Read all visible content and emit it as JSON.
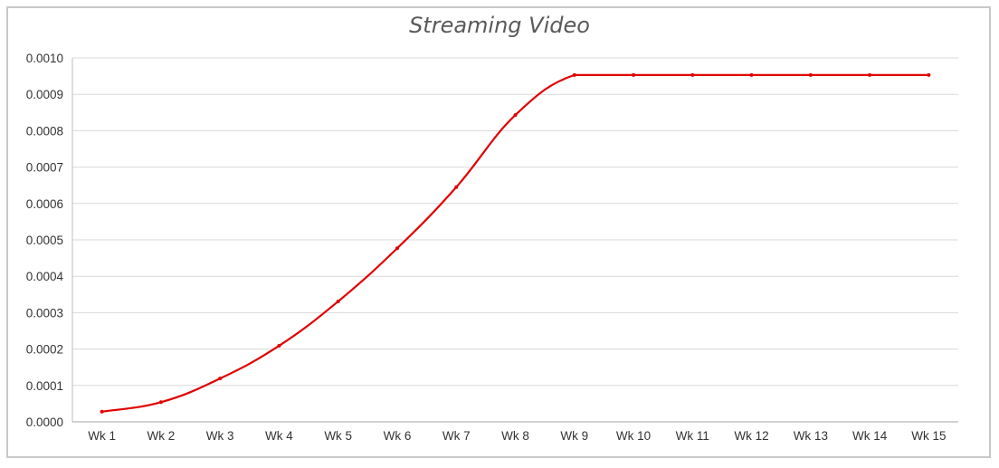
{
  "chart_data": {
    "type": "line",
    "title": "Streaming Video",
    "xlabel": "",
    "ylabel": "",
    "categories": [
      "Wk 1",
      "Wk 2",
      "Wk 3",
      "Wk 4",
      "Wk 5",
      "Wk 6",
      "Wk 7",
      "Wk 8",
      "Wk 9",
      "Wk 10",
      "Wk 11",
      "Wk 12",
      "Wk 13",
      "Wk 14",
      "Wk 15"
    ],
    "series": [
      {
        "values": [
          2.8e-05,
          5.4e-05,
          0.000119,
          0.000209,
          0.000331,
          0.000477,
          0.000645,
          0.000843,
          0.000953,
          0.000953,
          0.000953,
          0.000953,
          0.000953,
          0.000953,
          0.000953
        ],
        "color": "#e00000"
      }
    ],
    "ylim": [
      0,
      0.001
    ],
    "yticks": [
      "0.0000",
      "0.0001",
      "0.0002",
      "0.0003",
      "0.0004",
      "0.0005",
      "0.0006",
      "0.0007",
      "0.0008",
      "0.0009",
      "0.0010"
    ],
    "grid": true,
    "legend": "none"
  }
}
